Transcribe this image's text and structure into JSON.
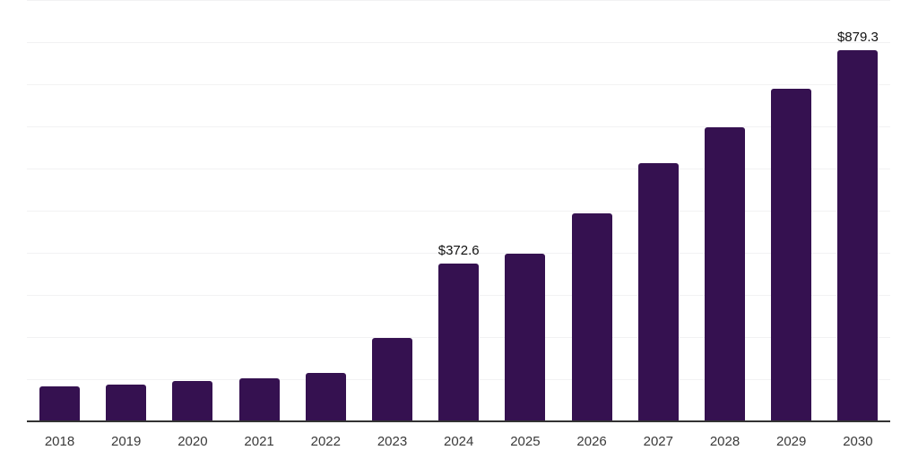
{
  "chart_data": {
    "type": "bar",
    "categories": [
      "2018",
      "2019",
      "2020",
      "2021",
      "2022",
      "2023",
      "2024",
      "2025",
      "2026",
      "2027",
      "2028",
      "2029",
      "2030"
    ],
    "values": [
      80,
      86,
      93,
      100,
      112,
      195,
      372.6,
      395,
      491,
      610,
      695,
      788,
      879.3
    ],
    "data_labels": {
      "2024": "$372.6",
      "2030": "$879.3"
    },
    "title": "",
    "xlabel": "",
    "ylabel": "",
    "ylim": [
      0,
      1000
    ],
    "gridline_interval": 100,
    "grid_on": true,
    "y_axis_labels_shown": false,
    "legend_position": "none",
    "colors": {
      "bar": "#351150",
      "grid": "#f2f2f3",
      "axis": "#333333",
      "tick_label": "#3a3a3a",
      "data_label": "#111111",
      "background": "#ffffff"
    }
  }
}
